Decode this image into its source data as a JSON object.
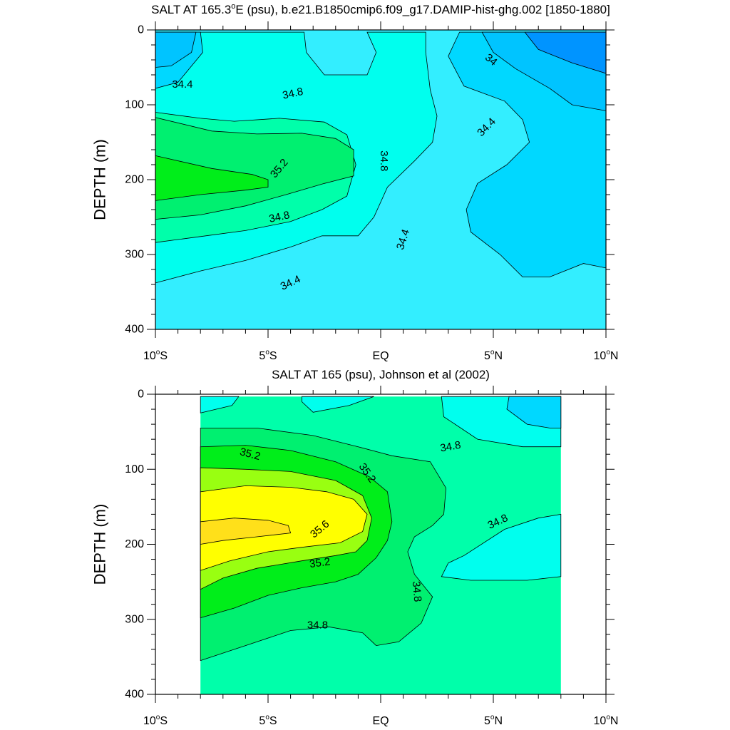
{
  "figure": {
    "colors": {
      "c_le_34_0": "#0094FF",
      "c_34_0_34_2": "#00C4FF",
      "c_34_2_34_4": "#00D8FF",
      "c_34_4_34_6": "#33EEFF",
      "c_34_6_34_8": "#00FFEE",
      "c_34_8_35_0": "#00FFAA",
      "c_35_0_35_2": "#00F070",
      "c_35_2_35_4": "#00EE1A",
      "c_35_4_35_6": "#99FF11",
      "c_35_6_35_8": "#FFFF00",
      "c_gt_35_8": "#FFE01A"
    }
  },
  "chart_data": [
    {
      "type": "contour",
      "title": "SALT AT 165.3°E (psu), b.e21.B1850cmip6.f09_g17.DAMIP-hist-ghg.002 [1850-1880]",
      "title_parts": [
        "SALT AT 165.3",
        "o",
        "E (psu), b.e21.B1850cmip6.f09_g17.DAMIP-hist-ghg.002 [1850-1880]"
      ],
      "ylabel": "DEPTH (m)",
      "xlim": [
        -10,
        10
      ],
      "ylim": [
        0,
        400
      ],
      "y_inverted": true,
      "x_ticks": [
        {
          "value": -10,
          "num": "10",
          "deg": "o",
          "hemi": "S"
        },
        {
          "value": -5,
          "num": "5",
          "deg": "o",
          "hemi": "S"
        },
        {
          "value": 0,
          "num": "EQ",
          "deg": "",
          "hemi": ""
        },
        {
          "value": 5,
          "num": "5",
          "deg": "o",
          "hemi": "N"
        },
        {
          "value": 10,
          "num": "10",
          "deg": "o",
          "hemi": "N"
        }
      ],
      "y_ticks": [
        {
          "value": 0,
          "label": "0"
        },
        {
          "value": 100,
          "label": "100"
        },
        {
          "value": 200,
          "label": "200"
        },
        {
          "value": 300,
          "label": "300"
        },
        {
          "value": 400,
          "label": "400"
        }
      ],
      "contour_labels": [
        {
          "text": "34",
          "lat": 4.9,
          "depth": 40,
          "angle": 40
        },
        {
          "text": "34.4",
          "lat": -8.8,
          "depth": 73,
          "angle": 0
        },
        {
          "text": "34.8",
          "lat": -3.9,
          "depth": 85,
          "angle": -12
        },
        {
          "text": "34.8",
          "lat": 0.15,
          "depth": 175,
          "angle": 90
        },
        {
          "text": "34.4",
          "lat": 4.7,
          "depth": 130,
          "angle": -45
        },
        {
          "text": "35.2",
          "lat": -4.5,
          "depth": 185,
          "angle": -50
        },
        {
          "text": "34.8",
          "lat": -4.5,
          "depth": 250,
          "angle": -12
        },
        {
          "text": "34.4",
          "lat": 1.0,
          "depth": 280,
          "angle": -72
        },
        {
          "text": "34.4",
          "lat": -4.0,
          "depth": 338,
          "angle": -25
        }
      ]
    },
    {
      "type": "contour",
      "title": "SALT AT 165 (psu), Johnson et al (2002)",
      "ylabel": "DEPTH (m)",
      "xlim": [
        -10,
        10
      ],
      "ylim": [
        0,
        400
      ],
      "y_inverted": true,
      "data_lat_range": [
        -8,
        8
      ],
      "x_ticks": [
        {
          "value": -10,
          "num": "10",
          "deg": "o",
          "hemi": "S"
        },
        {
          "value": -5,
          "num": "5",
          "deg": "o",
          "hemi": "S"
        },
        {
          "value": 0,
          "num": "EQ",
          "deg": "",
          "hemi": ""
        },
        {
          "value": 5,
          "num": "5",
          "deg": "o",
          "hemi": "N"
        },
        {
          "value": 10,
          "num": "10",
          "deg": "o",
          "hemi": "N"
        }
      ],
      "y_ticks": [
        {
          "value": 0,
          "label": "0"
        },
        {
          "value": 100,
          "label": "100"
        },
        {
          "value": 200,
          "label": "200"
        },
        {
          "value": 300,
          "label": "300"
        },
        {
          "value": 400,
          "label": "400"
        }
      ],
      "contour_labels": [
        {
          "text": "35.2",
          "lat": -5.8,
          "depth": 80,
          "angle": 15
        },
        {
          "text": "35.2",
          "lat": -0.6,
          "depth": 105,
          "angle": 55
        },
        {
          "text": "34.8",
          "lat": 3.1,
          "depth": 70,
          "angle": -10
        },
        {
          "text": "34.8",
          "lat": 5.2,
          "depth": 170,
          "angle": -25
        },
        {
          "text": "35.6",
          "lat": -2.7,
          "depth": 180,
          "angle": -40
        },
        {
          "text": "35.2",
          "lat": -2.7,
          "depth": 225,
          "angle": -8
        },
        {
          "text": "34.8",
          "lat": 1.6,
          "depth": 263,
          "angle": 85
        },
        {
          "text": "34.8",
          "lat": -2.8,
          "depth": 308,
          "angle": 0
        }
      ]
    }
  ]
}
